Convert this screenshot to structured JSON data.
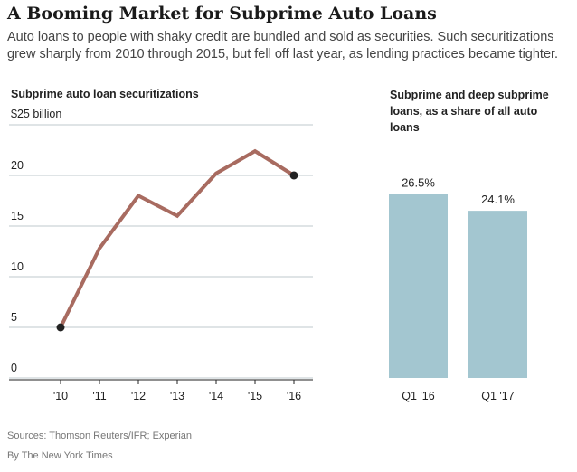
{
  "header": {
    "title": "A Booming Market for Subprime Auto Loans",
    "subtitle": "Auto loans to people with shaky credit are bundled and sold as securities. Such securitizations grew sharply from 2010 through 2015, but fell off last year, as lending practices became tighter."
  },
  "footer": {
    "sources": "Sources: Thomson Reuters/IFR; Experian",
    "byline": "By The New York Times"
  },
  "colors": {
    "line": "#a86b60",
    "bar": "#a3c6d0",
    "grid": "#bfc9cc",
    "point": "#222222"
  },
  "chart_data": [
    {
      "type": "line",
      "title": "Subprime auto loan securitizations",
      "unit_label": "$25 billion",
      "categories": [
        "'10",
        "'11",
        "'12",
        "'13",
        "'14",
        "'15",
        "'16"
      ],
      "series": [
        {
          "values": [
            5,
            12.8,
            18,
            16,
            20.2,
            22.4,
            20
          ]
        }
      ],
      "ylim": [
        0,
        25
      ],
      "yticks": [
        0,
        5,
        10,
        15,
        20
      ],
      "highlighted_points": [
        "'10",
        "'16"
      ],
      "grid": true
    },
    {
      "type": "bar",
      "title": "Subprime and deep subprime loans, as a share of all auto loans",
      "categories": [
        "Q1 '16",
        "Q1 '17"
      ],
      "values": [
        26.5,
        24.1
      ],
      "value_labels": [
        "26.5%",
        "24.1%"
      ],
      "ylim": [
        0,
        36.5
      ]
    }
  ]
}
